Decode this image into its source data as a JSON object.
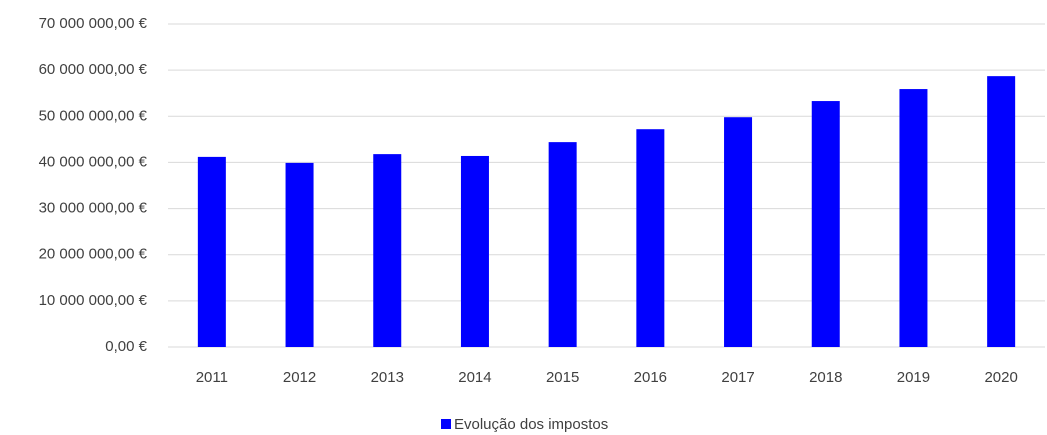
{
  "chart_data": {
    "type": "bar",
    "categories": [
      "2011",
      "2012",
      "2013",
      "2014",
      "2015",
      "2016",
      "2017",
      "2018",
      "2019",
      "2020"
    ],
    "series": [
      {
        "name": "Evolução dos impostos",
        "color": "#0000ff",
        "values": [
          41200000,
          39900000,
          41800000,
          41400000,
          44400000,
          47200000,
          49800000,
          53300000,
          55900000,
          58700000
        ]
      }
    ],
    "ylim": [
      0,
      70000000
    ],
    "yticks": [
      {
        "value": 0,
        "label": "0,00 €"
      },
      {
        "value": 10000000,
        "label": "10 000 000,00 €"
      },
      {
        "value": 20000000,
        "label": "20 000 000,00 €"
      },
      {
        "value": 30000000,
        "label": "30 000 000,00 €"
      },
      {
        "value": 40000000,
        "label": "40 000 000,00 €"
      },
      {
        "value": 50000000,
        "label": "50 000 000,00 €"
      },
      {
        "value": 60000000,
        "label": "60 000 000,00 €"
      },
      {
        "value": 70000000,
        "label": "70 000 000,00 €"
      }
    ],
    "grid": true,
    "legend": "bottom"
  }
}
